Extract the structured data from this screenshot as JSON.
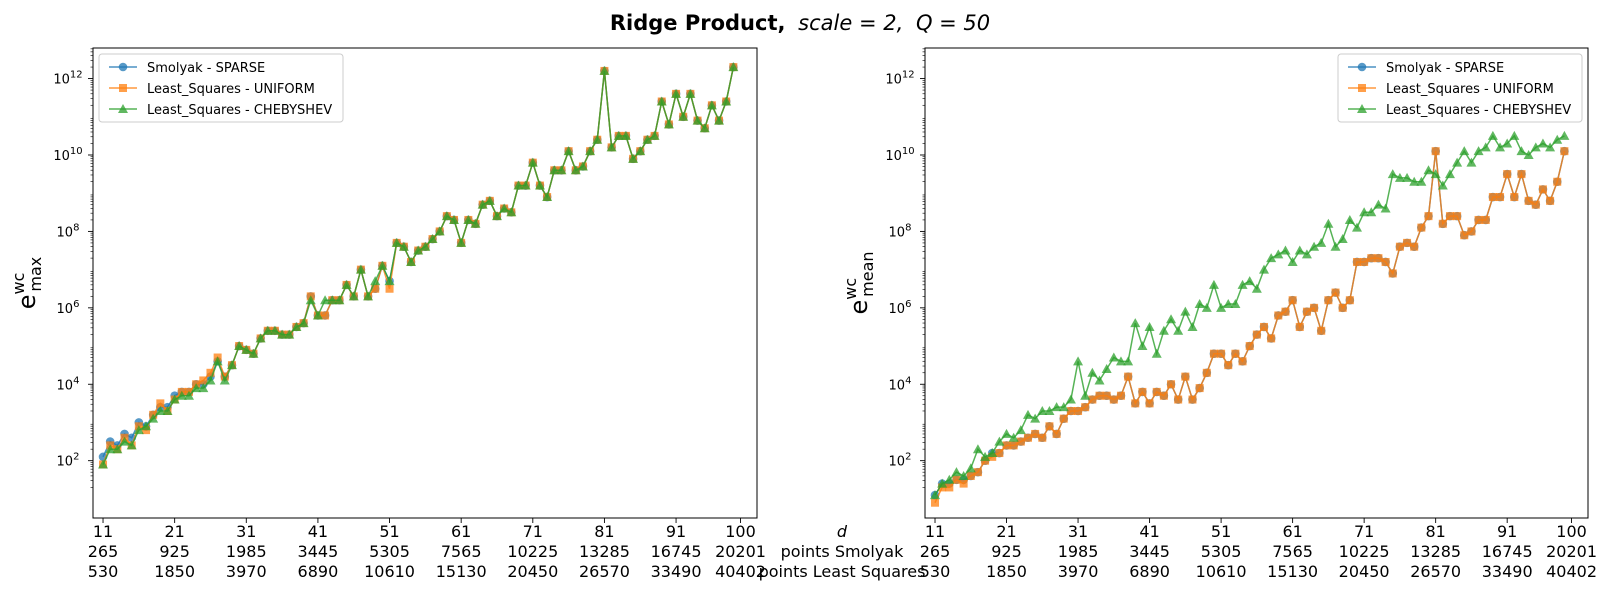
{
  "title": {
    "bold": "Ridge Product,",
    "scale_part": "scale = 2,",
    "q_part": "Q = 50"
  },
  "row_labels": {
    "d": "d",
    "smolyak": "points Smolyak",
    "ls": "points Least Squares"
  },
  "series_colors": {
    "Smolyak - SPARSE": "#1f77b4",
    "Least_Squares - UNIFORM": "#ff7f0e",
    "Least_Squares - CHEBYSHEV": "#2ca02c"
  },
  "chart_data": [
    {
      "type": "line",
      "ylabel": {
        "base": "e",
        "sup": "wc",
        "sub": "max"
      },
      "yscale": "log",
      "ylim_log10": [
        0.5,
        12.8
      ],
      "xlim": [
        9.6,
        102.3
      ],
      "xticks": [
        {
          "d": "11",
          "smolyak": "265",
          "ls": "530"
        },
        {
          "d": "21",
          "smolyak": "925",
          "ls": "1850"
        },
        {
          "d": "31",
          "smolyak": "1985",
          "ls": "3970"
        },
        {
          "d": "41",
          "smolyak": "3445",
          "ls": "6890"
        },
        {
          "d": "51",
          "smolyak": "5305",
          "ls": "10610"
        },
        {
          "d": "61",
          "smolyak": "7565",
          "ls": "15130"
        },
        {
          "d": "71",
          "smolyak": "10225",
          "ls": "20450"
        },
        {
          "d": "81",
          "smolyak": "13285",
          "ls": "26570"
        },
        {
          "d": "91",
          "smolyak": "16745",
          "ls": "33490"
        },
        {
          "d": "100",
          "smolyak": "20201",
          "ls": "40402"
        }
      ],
      "yticks": [
        {
          "base": "10",
          "exp": "2",
          "v": 2
        },
        {
          "base": "10",
          "exp": "4",
          "v": 4
        },
        {
          "base": "10",
          "exp": "6",
          "v": 6
        },
        {
          "base": "10",
          "exp": "8",
          "v": 8
        },
        {
          "base": "10",
          "exp": "10",
          "v": 10
        },
        {
          "base": "10",
          "exp": "12",
          "v": 12
        }
      ],
      "legend_position": "upper-left",
      "series": [
        {
          "name": "Smolyak - SPARSE",
          "marker": "circle",
          "log10_values": [
            2.1,
            2.5,
            2.4,
            2.7,
            2.6,
            3.0,
            2.9,
            3.2,
            3.4,
            3.4,
            3.7,
            3.8,
            3.8,
            4.0,
            4.0,
            4.2,
            4.6,
            4.2,
            4.5,
            5.0,
            4.9,
            4.8,
            5.2,
            5.4,
            5.4,
            5.3,
            5.3,
            5.5,
            5.6,
            6.3,
            5.8,
            5.8,
            6.2,
            6.2,
            6.6,
            6.3,
            7.0,
            6.3,
            6.5,
            7.1,
            6.7,
            7.7,
            7.6,
            7.2,
            7.5,
            7.6,
            7.8,
            8.0,
            8.4,
            8.3,
            7.7,
            8.3,
            8.2,
            8.7,
            8.8,
            8.4,
            8.6,
            8.5,
            9.2,
            9.2,
            9.8,
            9.2,
            8.9,
            9.6,
            9.6,
            10.1,
            9.6,
            9.7,
            10.1,
            10.4,
            12.2,
            10.2,
            10.5,
            10.5,
            9.9,
            10.1,
            10.4,
            10.5,
            11.4,
            10.8,
            11.6,
            11.0,
            11.6,
            10.9,
            10.7,
            11.3,
            10.9,
            11.4,
            12.3
          ]
        },
        {
          "name": "Least_Squares - UNIFORM",
          "marker": "square",
          "log10_values": [
            1.9,
            2.4,
            2.3,
            2.6,
            2.4,
            2.9,
            2.8,
            3.2,
            3.5,
            3.3,
            3.6,
            3.8,
            3.8,
            4.0,
            4.1,
            4.3,
            4.7,
            4.2,
            4.5,
            5.0,
            4.9,
            4.8,
            5.2,
            5.4,
            5.4,
            5.3,
            5.3,
            5.5,
            5.6,
            6.3,
            5.8,
            5.8,
            6.2,
            6.2,
            6.6,
            6.3,
            7.0,
            6.3,
            6.5,
            7.1,
            6.5,
            7.7,
            7.6,
            7.2,
            7.5,
            7.6,
            7.8,
            8.0,
            8.4,
            8.3,
            7.7,
            8.3,
            8.2,
            8.7,
            8.8,
            8.4,
            8.6,
            8.5,
            9.2,
            9.2,
            9.8,
            9.2,
            8.9,
            9.6,
            9.6,
            10.1,
            9.6,
            9.7,
            10.1,
            10.4,
            12.2,
            10.2,
            10.5,
            10.5,
            9.9,
            10.1,
            10.4,
            10.5,
            11.4,
            10.8,
            11.6,
            11.0,
            11.6,
            10.9,
            10.7,
            11.3,
            10.9,
            11.4,
            12.3
          ]
        },
        {
          "name": "Least_Squares - CHEBYSHEV",
          "marker": "triangle",
          "log10_values": [
            1.9,
            2.3,
            2.3,
            2.5,
            2.4,
            2.8,
            2.9,
            3.1,
            3.3,
            3.3,
            3.6,
            3.7,
            3.7,
            3.9,
            3.9,
            4.1,
            4.6,
            4.1,
            4.5,
            5.0,
            4.9,
            4.8,
            5.2,
            5.4,
            5.4,
            5.3,
            5.3,
            5.5,
            5.6,
            6.2,
            5.8,
            6.2,
            6.2,
            6.2,
            6.6,
            6.3,
            7.0,
            6.3,
            6.7,
            7.1,
            6.7,
            7.7,
            7.6,
            7.2,
            7.5,
            7.6,
            7.8,
            8.0,
            8.4,
            8.3,
            7.7,
            8.3,
            8.2,
            8.7,
            8.8,
            8.4,
            8.6,
            8.5,
            9.2,
            9.2,
            9.8,
            9.2,
            8.9,
            9.6,
            9.6,
            10.1,
            9.6,
            9.7,
            10.1,
            10.4,
            12.2,
            10.2,
            10.5,
            10.5,
            9.9,
            10.1,
            10.4,
            10.5,
            11.4,
            10.8,
            11.6,
            11.0,
            11.6,
            10.9,
            10.7,
            11.3,
            10.9,
            11.4,
            12.3
          ]
        }
      ]
    },
    {
      "type": "line",
      "ylabel": {
        "base": "e",
        "sup": "wc",
        "sub": "mean"
      },
      "yscale": "log",
      "ylim_log10": [
        0.5,
        12.8
      ],
      "xlim": [
        9.6,
        102.3
      ],
      "xticks": [
        {
          "d": "11",
          "smolyak": "265",
          "ls": "530"
        },
        {
          "d": "21",
          "smolyak": "925",
          "ls": "1850"
        },
        {
          "d": "31",
          "smolyak": "1985",
          "ls": "3970"
        },
        {
          "d": "41",
          "smolyak": "3445",
          "ls": "6890"
        },
        {
          "d": "51",
          "smolyak": "5305",
          "ls": "10610"
        },
        {
          "d": "61",
          "smolyak": "7565",
          "ls": "15130"
        },
        {
          "d": "71",
          "smolyak": "10225",
          "ls": "20450"
        },
        {
          "d": "81",
          "smolyak": "13285",
          "ls": "26570"
        },
        {
          "d": "91",
          "smolyak": "16745",
          "ls": "33490"
        },
        {
          "d": "100",
          "smolyak": "20201",
          "ls": "40402"
        }
      ],
      "yticks": [
        {
          "base": "10",
          "exp": "2",
          "v": 2
        },
        {
          "base": "10",
          "exp": "4",
          "v": 4
        },
        {
          "base": "10",
          "exp": "6",
          "v": 6
        },
        {
          "base": "10",
          "exp": "8",
          "v": 8
        },
        {
          "base": "10",
          "exp": "10",
          "v": 10
        },
        {
          "base": "10",
          "exp": "12",
          "v": 12
        }
      ],
      "legend_position": "upper-right",
      "series": [
        {
          "name": "Smolyak - SPARSE",
          "marker": "circle",
          "log10_values": [
            1.1,
            1.4,
            1.4,
            1.5,
            1.5,
            1.6,
            1.7,
            2.0,
            2.2,
            2.2,
            2.4,
            2.4,
            2.5,
            2.6,
            2.7,
            2.6,
            2.9,
            2.7,
            3.1,
            3.3,
            3.3,
            3.4,
            3.6,
            3.7,
            3.7,
            3.6,
            3.7,
            4.2,
            3.5,
            3.8,
            3.5,
            3.8,
            3.7,
            4.0,
            3.6,
            4.2,
            3.6,
            3.9,
            4.3,
            4.8,
            4.8,
            4.5,
            4.8,
            4.6,
            5.0,
            5.3,
            5.5,
            5.2,
            5.8,
            5.9,
            6.2,
            5.5,
            5.9,
            6.0,
            5.4,
            6.2,
            6.4,
            6.0,
            6.2,
            7.2,
            7.2,
            7.3,
            7.3,
            7.2,
            6.9,
            7.6,
            7.7,
            7.6,
            8.1,
            8.4,
            10.1,
            8.2,
            8.4,
            8.4,
            7.9,
            8.0,
            8.3,
            8.3,
            8.9,
            8.9,
            9.5,
            8.9,
            9.5,
            8.8,
            8.7,
            9.1,
            8.8,
            9.3,
            10.1
          ]
        },
        {
          "name": "Least_Squares - UNIFORM",
          "marker": "square",
          "log10_values": [
            0.9,
            1.3,
            1.3,
            1.5,
            1.4,
            1.6,
            1.7,
            2.0,
            2.1,
            2.2,
            2.4,
            2.4,
            2.5,
            2.6,
            2.7,
            2.6,
            2.9,
            2.7,
            3.1,
            3.3,
            3.3,
            3.4,
            3.6,
            3.7,
            3.7,
            3.6,
            3.7,
            4.2,
            3.5,
            3.8,
            3.5,
            3.8,
            3.7,
            4.0,
            3.6,
            4.2,
            3.6,
            3.9,
            4.3,
            4.8,
            4.8,
            4.5,
            4.8,
            4.6,
            5.0,
            5.3,
            5.5,
            5.2,
            5.8,
            5.9,
            6.2,
            5.5,
            5.9,
            6.0,
            5.4,
            6.2,
            6.4,
            6.0,
            6.2,
            7.2,
            7.2,
            7.3,
            7.3,
            7.2,
            6.9,
            7.6,
            7.7,
            7.6,
            8.1,
            8.4,
            10.1,
            8.2,
            8.4,
            8.4,
            7.9,
            8.0,
            8.3,
            8.3,
            8.9,
            8.9,
            9.5,
            8.9,
            9.5,
            8.8,
            8.7,
            9.1,
            8.8,
            9.3,
            10.1
          ]
        },
        {
          "name": "Least_Squares - CHEBYSHEV",
          "marker": "triangle",
          "log10_values": [
            1.1,
            1.4,
            1.5,
            1.7,
            1.6,
            1.8,
            2.3,
            2.1,
            2.2,
            2.5,
            2.7,
            2.6,
            2.8,
            3.2,
            3.1,
            3.3,
            3.3,
            3.4,
            3.4,
            3.6,
            4.6,
            3.7,
            4.3,
            4.1,
            4.4,
            4.7,
            4.6,
            4.6,
            5.6,
            5.0,
            5.5,
            4.8,
            5.4,
            5.7,
            5.4,
            5.9,
            5.5,
            6.1,
            6.0,
            6.6,
            6.0,
            6.1,
            6.1,
            6.6,
            6.7,
            6.5,
            7.0,
            7.3,
            7.4,
            7.5,
            7.2,
            7.5,
            7.4,
            7.6,
            7.7,
            8.2,
            7.6,
            7.8,
            8.3,
            8.1,
            8.5,
            8.5,
            8.7,
            8.6,
            9.5,
            9.4,
            9.4,
            9.3,
            9.3,
            9.6,
            9.5,
            9.2,
            9.5,
            9.8,
            10.1,
            9.8,
            10.1,
            10.2,
            10.5,
            10.2,
            10.3,
            10.5,
            10.1,
            10.0,
            10.2,
            10.3,
            10.2,
            10.4,
            10.5
          ]
        }
      ]
    }
  ]
}
